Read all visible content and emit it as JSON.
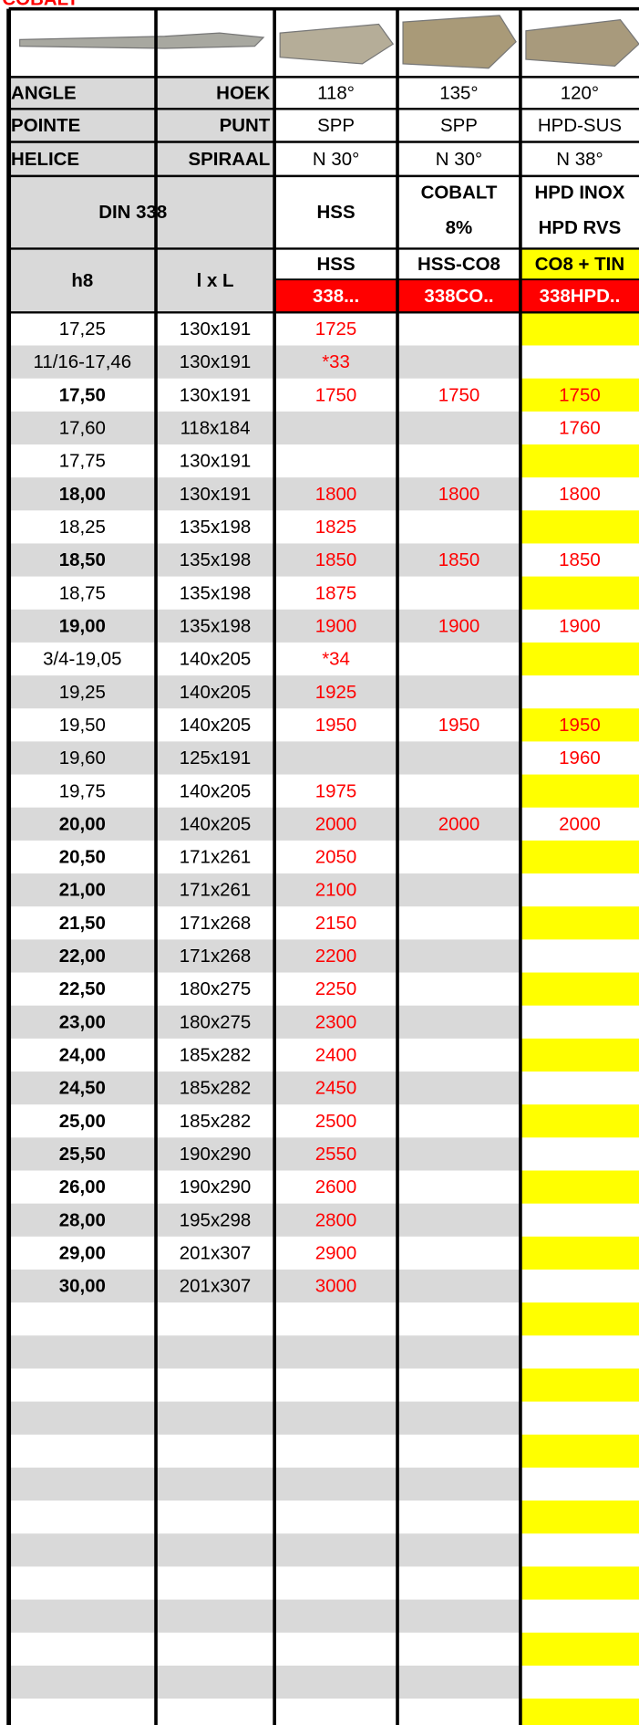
{
  "top_label": "COBALT",
  "header": {
    "spec_rows": [
      [
        "ANGLE",
        "HOEK",
        "118°",
        "135°",
        "120°"
      ],
      [
        "POINTE",
        "PUNT",
        "SPP",
        "SPP",
        "HPD-SUS"
      ],
      [
        "HELICE",
        "SPIRAAL",
        "N 30°",
        "N 30°",
        "N 38°"
      ]
    ],
    "din": [
      "DIN 338",
      "HSS",
      "COBALT",
      "8%",
      "HPD INOX",
      "HPD RVS"
    ],
    "dims": [
      "h8",
      "l x L"
    ],
    "types": [
      "HSS",
      "HSS-CO8",
      "CO8 + TIN"
    ],
    "codes": [
      "338...",
      "338CO..",
      "338HPD.."
    ]
  },
  "table": {
    "rows": [
      {
        "cells": [
          "17,25",
          "130x191",
          "1725",
          null,
          null
        ],
        "bold": false
      },
      {
        "cells": [
          "11/16-17,46",
          "130x191",
          "*33",
          null,
          null
        ],
        "bold": false
      },
      {
        "cells": [
          "17,50",
          "130x191",
          "1750",
          "1750",
          "1750"
        ],
        "bold": true
      },
      {
        "cells": [
          "17,60",
          "118x184",
          null,
          null,
          "1760"
        ],
        "bold": false
      },
      {
        "cells": [
          "17,75",
          "130x191",
          null,
          null,
          null
        ],
        "bold": false
      },
      {
        "cells": [
          "18,00",
          "130x191",
          "1800",
          "1800",
          "1800"
        ],
        "bold": true
      },
      {
        "cells": [
          "18,25",
          "135x198",
          "1825",
          null,
          null
        ],
        "bold": false
      },
      {
        "cells": [
          "18,50",
          "135x198",
          "1850",
          "1850",
          "1850"
        ],
        "bold": true
      },
      {
        "cells": [
          "18,75",
          "135x198",
          "1875",
          null,
          null
        ],
        "bold": false
      },
      {
        "cells": [
          "19,00",
          "135x198",
          "1900",
          "1900",
          "1900"
        ],
        "bold": true
      },
      {
        "cells": [
          "3/4-19,05",
          "140x205",
          "*34",
          null,
          null
        ],
        "bold": false
      },
      {
        "cells": [
          "19,25",
          "140x205",
          "1925",
          null,
          null
        ],
        "bold": false
      },
      {
        "cells": [
          "19,50",
          "140x205",
          "1950",
          "1950",
          "1950"
        ],
        "bold": false
      },
      {
        "cells": [
          "19,60",
          "125x191",
          null,
          null,
          "1960"
        ],
        "bold": false
      },
      {
        "cells": [
          "19,75",
          "140x205",
          "1975",
          null,
          null
        ],
        "bold": false
      },
      {
        "cells": [
          "20,00",
          "140x205",
          "2000",
          "2000",
          "2000"
        ],
        "bold": true
      },
      {
        "cells": [
          "20,50",
          "171x261",
          "2050",
          null,
          null
        ],
        "bold": true
      },
      {
        "cells": [
          "21,00",
          "171x261",
          "2100",
          null,
          null
        ],
        "bold": true
      },
      {
        "cells": [
          "21,50",
          "171x268",
          "2150",
          null,
          null
        ],
        "bold": true
      },
      {
        "cells": [
          "22,00",
          "171x268",
          "2200",
          null,
          null
        ],
        "bold": true
      },
      {
        "cells": [
          "22,50",
          "180x275",
          "2250",
          null,
          null
        ],
        "bold": true
      },
      {
        "cells": [
          "23,00",
          "180x275",
          "2300",
          null,
          null
        ],
        "bold": true
      },
      {
        "cells": [
          "24,00",
          "185x282",
          "2400",
          null,
          null
        ],
        "bold": true
      },
      {
        "cells": [
          "24,50",
          "185x282",
          "2450",
          null,
          null
        ],
        "bold": true
      },
      {
        "cells": [
          "25,00",
          "185x282",
          "2500",
          null,
          null
        ],
        "bold": true
      },
      {
        "cells": [
          "25,50",
          "190x290",
          "2550",
          null,
          null
        ],
        "bold": true
      },
      {
        "cells": [
          "26,00",
          "190x290",
          "2600",
          null,
          null
        ],
        "bold": true
      },
      {
        "cells": [
          "28,00",
          "195x298",
          "2800",
          null,
          null
        ],
        "bold": true
      },
      {
        "cells": [
          "29,00",
          "201x307",
          "2900",
          null,
          null
        ],
        "bold": true
      },
      {
        "cells": [
          "30,00",
          "201x307",
          "3000",
          null,
          null
        ],
        "bold": true
      }
    ]
  }
}
